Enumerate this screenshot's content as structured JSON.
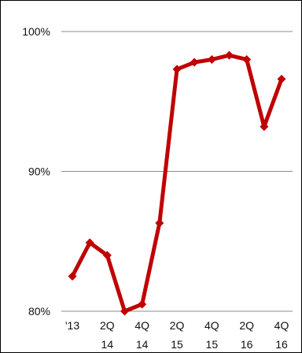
{
  "chart_data": {
    "type": "line",
    "title": "",
    "subtitle": "",
    "xlabel": "",
    "ylabel": "",
    "categories": [
      {
        "line1": "'13",
        "line2": ""
      },
      {
        "line1": "",
        "line2": ""
      },
      {
        "line1": "2Q",
        "line2": "14"
      },
      {
        "line1": "",
        "line2": ""
      },
      {
        "line1": "4Q",
        "line2": "14"
      },
      {
        "line1": "",
        "line2": ""
      },
      {
        "line1": "2Q",
        "line2": "15"
      },
      {
        "line1": "",
        "line2": ""
      },
      {
        "line1": "4Q",
        "line2": "15"
      },
      {
        "line1": "",
        "line2": ""
      },
      {
        "line1": "2Q",
        "line2": "16"
      },
      {
        "line1": "",
        "line2": ""
      },
      {
        "line1": "4Q",
        "line2": "16"
      }
    ],
    "series": [
      {
        "values": [
          82.5,
          84.9,
          84.0,
          80.0,
          80.5,
          86.3,
          97.3,
          97.8,
          98.0,
          98.3,
          98.0,
          93.2,
          96.6
        ],
        "color": "#c00000"
      }
    ],
    "yticks": [
      {
        "value": 80,
        "label": "80%"
      },
      {
        "value": 90,
        "label": "90%"
      },
      {
        "value": 100,
        "label": "100%"
      }
    ],
    "ylim": [
      80,
      100
    ],
    "grid": true,
    "legend": "none",
    "marker": "diamond"
  }
}
